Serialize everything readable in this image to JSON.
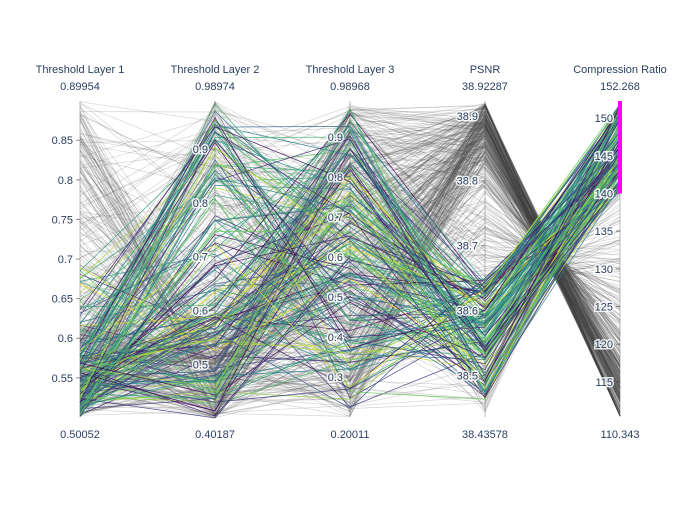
{
  "chart_data": {
    "type": "parallel_coordinates",
    "dimensions": [
      {
        "key": "threshold_layer_1",
        "label": "Threshold Layer 1",
        "range": [
          0.50052,
          0.89954
        ],
        "max_label": "0.89954",
        "min_label": "0.50052",
        "ticks": [
          {
            "value": 0.55,
            "label": "0.55"
          },
          {
            "value": 0.6,
            "label": "0.6"
          },
          {
            "value": 0.65,
            "label": "0.65"
          },
          {
            "value": 0.7,
            "label": "0.7"
          },
          {
            "value": 0.75,
            "label": "0.75"
          },
          {
            "value": 0.8,
            "label": "0.8"
          },
          {
            "value": 0.85,
            "label": "0.85"
          }
        ]
      },
      {
        "key": "threshold_layer_2",
        "label": "Threshold Layer 2",
        "range": [
          0.40187,
          0.98974
        ],
        "max_label": "0.98974",
        "min_label": "0.40187",
        "ticks": [
          {
            "value": 0.5,
            "label": "0.5"
          },
          {
            "value": 0.6,
            "label": "0.6"
          },
          {
            "value": 0.7,
            "label": "0.7"
          },
          {
            "value": 0.8,
            "label": "0.8"
          },
          {
            "value": 0.9,
            "label": "0.9"
          }
        ]
      },
      {
        "key": "threshold_layer_3",
        "label": "Threshold Layer 3",
        "range": [
          0.20011,
          0.98968
        ],
        "max_label": "0.98968",
        "min_label": "0.20011",
        "ticks": [
          {
            "value": 0.3,
            "label": "0.3"
          },
          {
            "value": 0.4,
            "label": "0.4"
          },
          {
            "value": 0.5,
            "label": "0.5"
          },
          {
            "value": 0.6,
            "label": "0.6"
          },
          {
            "value": 0.7,
            "label": "0.7"
          },
          {
            "value": 0.8,
            "label": "0.8"
          },
          {
            "value": 0.9,
            "label": "0.9"
          }
        ]
      },
      {
        "key": "psnr",
        "label": "PSNR",
        "range": [
          38.43578,
          38.92287
        ],
        "max_label": "38.92287",
        "min_label": "38.43578",
        "ticks": [
          {
            "value": 38.5,
            "label": "38.5"
          },
          {
            "value": 38.6,
            "label": "38.6"
          },
          {
            "value": 38.7,
            "label": "38.7"
          },
          {
            "value": 38.8,
            "label": "38.8"
          },
          {
            "value": 38.9,
            "label": "38.9"
          }
        ]
      },
      {
        "key": "compression_ratio",
        "label": "Compression Ratio",
        "range": [
          110.343,
          152.268
        ],
        "max_label": "152.268",
        "min_label": "110.343",
        "ticks": [
          {
            "value": 115,
            "label": "115"
          },
          {
            "value": 120,
            "label": "120"
          },
          {
            "value": 125,
            "label": "125"
          },
          {
            "value": 130,
            "label": "130"
          },
          {
            "value": 135,
            "label": "135"
          },
          {
            "value": 140,
            "label": "140"
          },
          {
            "value": 145,
            "label": "145"
          },
          {
            "value": 150,
            "label": "150"
          }
        ]
      }
    ],
    "constraint": {
      "dimension": "compression_ratio",
      "range": [
        140,
        152.268
      ],
      "color": "#ff00ff"
    },
    "colorscale": [
      "#440154",
      "#3b528b",
      "#21918c",
      "#5ec962",
      "#fde725"
    ],
    "unselected_color": "#444444",
    "selected_line_count": 150,
    "unselected_line_count": 450
  }
}
